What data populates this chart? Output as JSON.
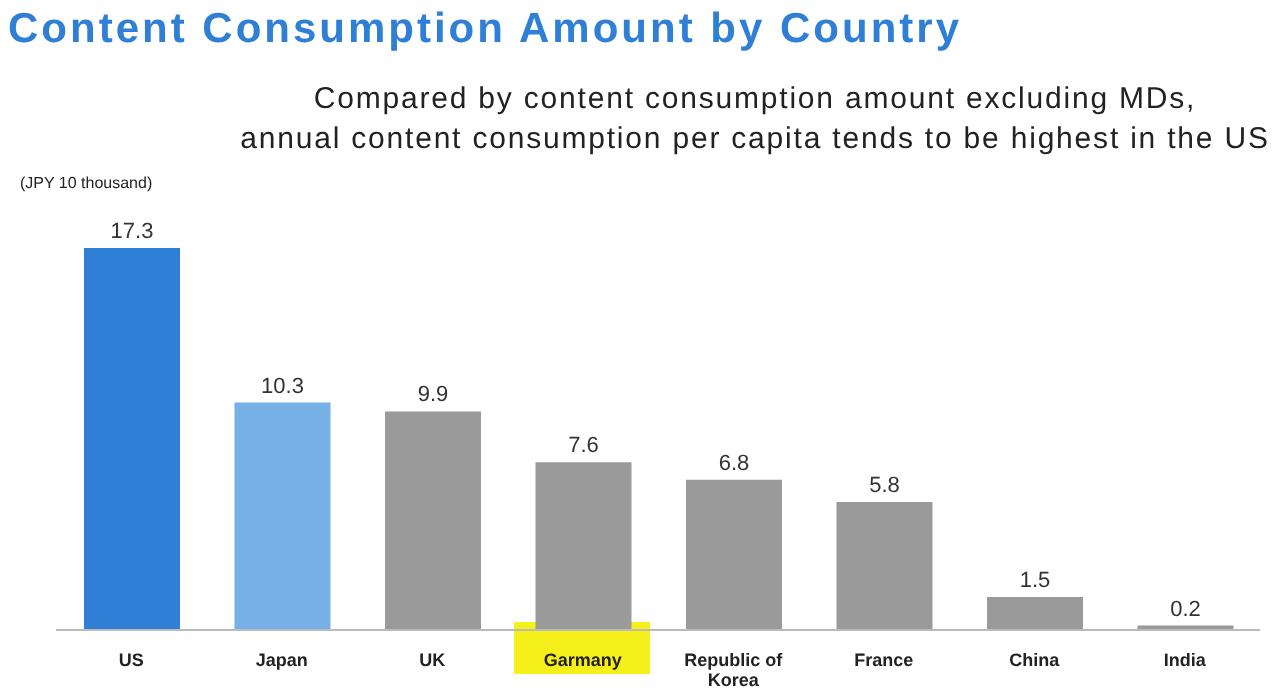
{
  "chart_data": {
    "type": "bar",
    "title": "Content Consumption Amount by Country",
    "subtitle": "Compared by content consumption amount excluding MDs,\nannual content consumption per capita tends to be highest in the US",
    "ylabel": "(JPY 10 thousand)",
    "categories": [
      "US",
      "Japan",
      "UK",
      "Garmany",
      "Republic of Korea",
      "France",
      "China",
      "India"
    ],
    "values": [
      17.3,
      10.3,
      9.9,
      7.6,
      6.8,
      5.8,
      1.5,
      0.2
    ],
    "colors": [
      "#2f7fd6",
      "#76b0e6",
      "#9a9a9a",
      "#9a9a9a",
      "#9a9a9a",
      "#9a9a9a",
      "#9a9a9a",
      "#9a9a9a"
    ],
    "data_labels": true,
    "grid": false,
    "legend": false
  }
}
